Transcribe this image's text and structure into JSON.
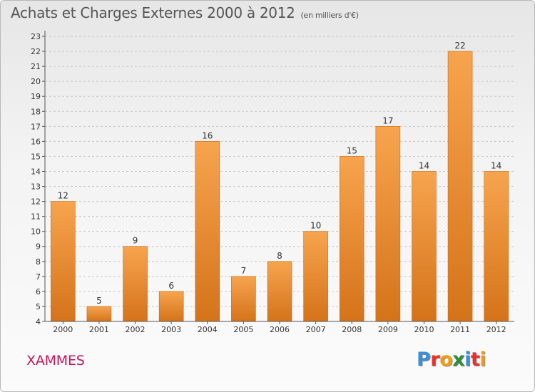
{
  "title": {
    "main": "Achats et Charges Externes 2000 à 2012",
    "unit": "(en milliers d'€)"
  },
  "commune": "XAMMES",
  "logo": {
    "text": "Proxiti",
    "letters": [
      {
        "ch": "P",
        "color": "#3b8fd6"
      },
      {
        "ch": "r",
        "color": "#e8302e"
      },
      {
        "ch": "o",
        "color": "#f39c12"
      },
      {
        "ch": "x",
        "color": "#2e8b3a"
      },
      {
        "ch": "i",
        "color": "#3b8fd6"
      },
      {
        "ch": "t",
        "color": "#e8302e"
      },
      {
        "ch": "i",
        "color": "#f39c12"
      }
    ]
  },
  "colors": {
    "bar_top": "#f7a44e",
    "bar_bottom": "#d4731a",
    "bar_stroke": "#c96a12",
    "grid": "#c8c8c8",
    "axis": "#555555",
    "label": "#333333"
  },
  "chart_data": {
    "type": "bar",
    "categories": [
      "2000",
      "2001",
      "2002",
      "2003",
      "2004",
      "2005",
      "2006",
      "2007",
      "2008",
      "2009",
      "2010",
      "2011",
      "2012"
    ],
    "values": [
      12,
      5,
      9,
      6,
      16,
      7,
      8,
      10,
      15,
      17,
      14,
      22,
      14
    ],
    "data_labels": [
      "12",
      "5",
      "9",
      "6",
      "16",
      "7",
      "8",
      "10",
      "15",
      "17",
      "14",
      "22",
      "14"
    ],
    "ylim": [
      4,
      23
    ],
    "yticks": [
      4,
      5,
      6,
      7,
      8,
      9,
      10,
      11,
      12,
      13,
      14,
      15,
      16,
      17,
      18,
      19,
      20,
      21,
      22,
      23
    ],
    "grid": "horizontal dashed",
    "xlabel": "",
    "ylabel": ""
  }
}
